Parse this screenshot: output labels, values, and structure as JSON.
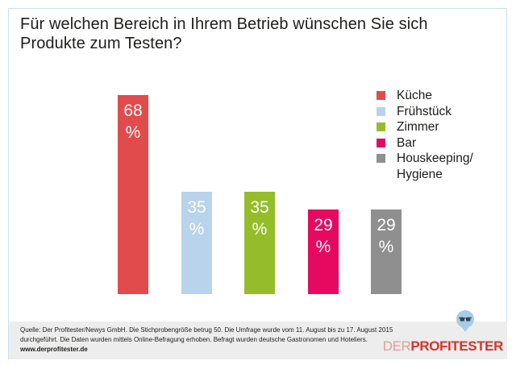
{
  "title": "Für welchen Bereich in Ihrem Betrieb wünschen Sie sich Produkte zum Testen?",
  "chart_data": {
    "type": "bar",
    "title": "Für welchen Bereich in Ihrem Betrieb wünschen Sie sich Produkte zum Testen?",
    "categories": [
      "Küche",
      "Frühstück",
      "Zimmer",
      "Bar",
      "Houskeeping/Hygiene"
    ],
    "values": [
      68,
      35,
      35,
      29,
      29
    ],
    "unit": "%",
    "colors": [
      "#e14b4b",
      "#b8d3eb",
      "#95bd29",
      "#e5095f",
      "#8f8f8f"
    ],
    "grid": false,
    "axes_visible": false,
    "legend_position": "right",
    "value_labels": "inside-top, white, value and % on separate lines"
  },
  "legend": {
    "items": [
      "Küche",
      "Frühstück",
      "Zimmer",
      "Bar",
      "Houskeeping/\nHygiene"
    ]
  },
  "footer": {
    "source": "Quelle: Der Profitester/Newys GmbH. Die Stichprobengröße betrug 50. Die Umfrage wurde vom 11. August bis zu 17. August 2015\ndurchgeführt. Die Daten wurden mittels Online-Befragung erhoben. Befragt wurden deutsche Gastronomen und Hoteliers.",
    "url": "www.derprofitester.de",
    "logo_prefix": "DER",
    "logo_main": "PROFITESTER"
  },
  "colors": {
    "frame_border": "#c9e0ef",
    "footer_background": "#ededed",
    "logo_bubble": "#a7cbe8",
    "logo_prefix": "#e59b94",
    "logo_main": "#d6332c",
    "text": "#1d1d1b"
  }
}
